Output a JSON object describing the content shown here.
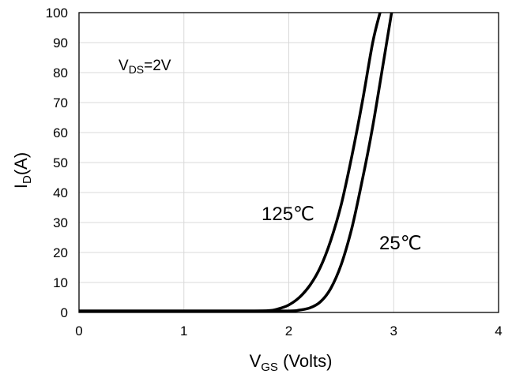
{
  "chart_data": {
    "type": "line",
    "xlabel_main": "V",
    "xlabel_sub": "GS",
    "xlabel_rest": " (Volts)",
    "ylabel_main": "I",
    "ylabel_sub": "D",
    "ylabel_rest": "(A)",
    "xlim": [
      0,
      4
    ],
    "ylim": [
      0,
      100
    ],
    "x_ticks": [
      "0",
      "1",
      "2",
      "3",
      "4"
    ],
    "y_ticks": [
      "0",
      "10",
      "20",
      "30",
      "40",
      "50",
      "60",
      "70",
      "80",
      "90",
      "100"
    ],
    "grid": true,
    "annotation": {
      "main": "V",
      "sub": "DS",
      "rest": "=2V"
    },
    "series": [
      {
        "name": "125℃",
        "x": [
          0,
          0.5,
          1.0,
          1.5,
          1.8,
          1.9,
          2.0,
          2.1,
          2.2,
          2.3,
          2.4,
          2.5,
          2.6,
          2.7,
          2.8,
          2.87
        ],
        "y": [
          0.5,
          0.5,
          0.5,
          0.5,
          0.6,
          1.2,
          2.5,
          5,
          9,
          15,
          24,
          36,
          52,
          70,
          90,
          100
        ]
      },
      {
        "name": "25℃",
        "x": [
          0,
          0.5,
          1.0,
          1.5,
          2.0,
          2.1,
          2.2,
          2.3,
          2.4,
          2.5,
          2.6,
          2.7,
          2.8,
          2.9,
          2.98
        ],
        "y": [
          0.5,
          0.5,
          0.5,
          0.5,
          0.5,
          0.8,
          1.5,
          3.5,
          8,
          16,
          28,
          44,
          62,
          83,
          100
        ]
      }
    ]
  }
}
